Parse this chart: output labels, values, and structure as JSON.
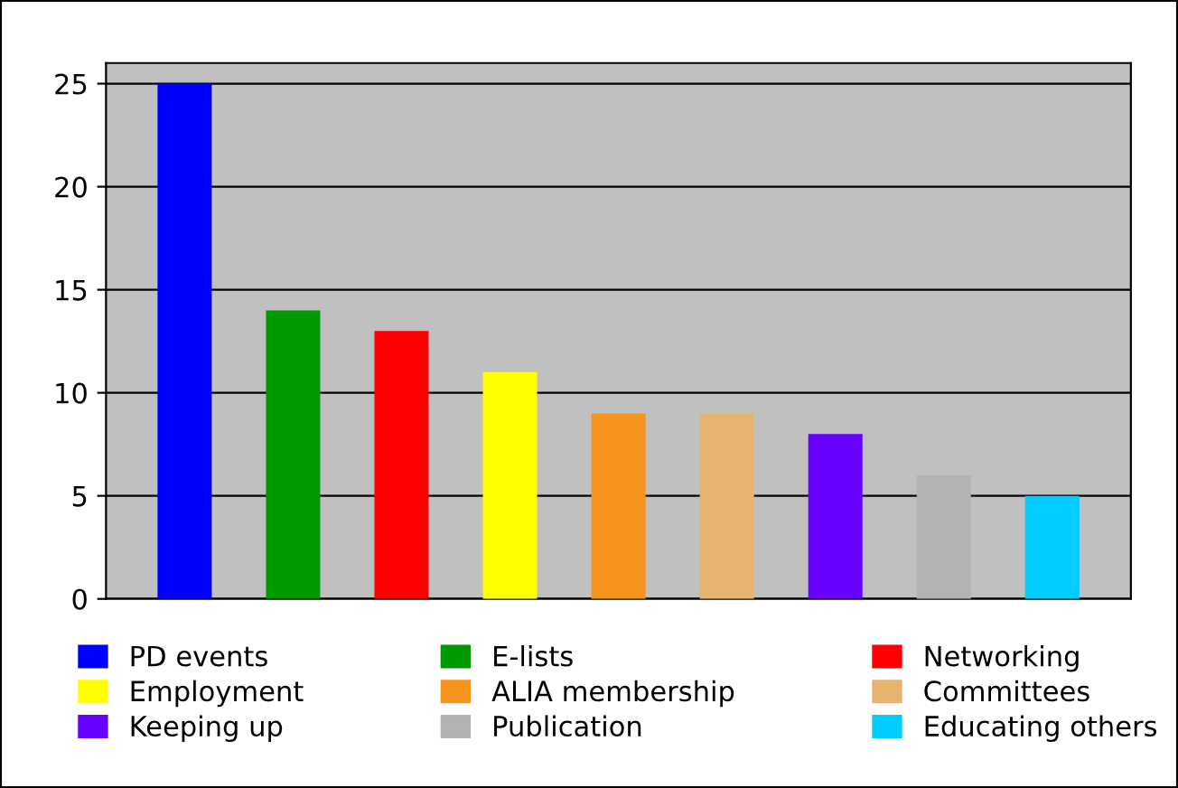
{
  "chart_data": {
    "type": "bar",
    "categories": [
      null
    ],
    "series": [
      {
        "name": "PD events",
        "color": "#0000ff",
        "values": [
          25
        ]
      },
      {
        "name": "E-lists",
        "color": "#009900",
        "values": [
          14
        ]
      },
      {
        "name": "Networking",
        "color": "#ff0000",
        "values": [
          13
        ]
      },
      {
        "name": "Employment",
        "color": "#ffff00",
        "values": [
          11
        ]
      },
      {
        "name": "ALIA membership",
        "color": "#f7941d",
        "values": [
          9
        ]
      },
      {
        "name": "Committees",
        "color": "#e6b46e",
        "values": [
          9
        ]
      },
      {
        "name": "Keeping up",
        "color": "#6600ff",
        "values": [
          8
        ]
      },
      {
        "name": "Publication",
        "color": "#b3b3b3",
        "values": [
          6
        ]
      },
      {
        "name": "Educating others",
        "color": "#00ccff",
        "values": [
          5
        ]
      }
    ],
    "ylim": [
      0,
      26
    ],
    "yticks": [
      0,
      5,
      10,
      15,
      20,
      25
    ],
    "grid": "y",
    "legend": "bottom",
    "tick_labels": "y"
  }
}
